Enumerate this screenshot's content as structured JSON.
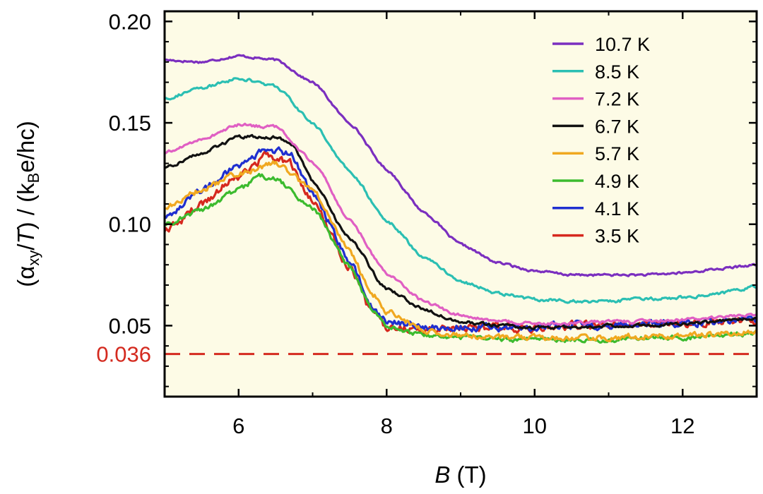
{
  "chart_data": {
    "type": "line",
    "xlabel_var": "B",
    "xlabel_unit": "(T)",
    "ylabel_pre": "(α",
    "ylabel_sub1": "xy",
    "ylabel_mid": "/",
    "ylabel_var": "T",
    "ylabel_post": ") / (k",
    "ylabel_sub2": "B",
    "ylabel_end": "e/hc)",
    "xlim": [
      5,
      13
    ],
    "ylim": [
      0.015,
      0.205
    ],
    "xticks": [
      "6",
      "8",
      "10",
      "12"
    ],
    "xtick_values": [
      6,
      8,
      10,
      12
    ],
    "yticks": [
      "0.05",
      "0.10",
      "0.15",
      "0.20"
    ],
    "ytick_values": [
      0.05,
      0.1,
      0.15,
      0.2
    ],
    "reference_line": {
      "value": 0.036,
      "label": "0.036",
      "color": "#d42a1f",
      "style": "dashed"
    },
    "background_color": "#fdfbe6",
    "legend_position": "top-right",
    "series": [
      {
        "name": "10.7 K",
        "color": "#7b2fbf",
        "noise": 0.0006,
        "x": [
          5.0,
          5.5,
          6.0,
          6.5,
          7.0,
          7.5,
          8.0,
          8.5,
          9.0,
          9.5,
          10.0,
          10.5,
          11.0,
          11.5,
          12.0,
          12.5,
          13.0
        ],
        "y": [
          0.181,
          0.18,
          0.183,
          0.181,
          0.17,
          0.15,
          0.127,
          0.106,
          0.09,
          0.081,
          0.077,
          0.075,
          0.075,
          0.075,
          0.076,
          0.078,
          0.08
        ]
      },
      {
        "name": "8.5 K",
        "color": "#2bbfb3",
        "noise": 0.0008,
        "x": [
          5.0,
          5.5,
          6.0,
          6.5,
          7.0,
          7.5,
          8.0,
          8.5,
          9.0,
          9.5,
          10.0,
          10.5,
          11.0,
          11.5,
          12.0,
          12.5,
          13.0
        ],
        "y": [
          0.162,
          0.167,
          0.172,
          0.168,
          0.15,
          0.126,
          0.102,
          0.084,
          0.072,
          0.066,
          0.063,
          0.062,
          0.062,
          0.063,
          0.064,
          0.066,
          0.069
        ]
      },
      {
        "name": "7.2 K",
        "color": "#e05fc3",
        "noise": 0.0008,
        "x": [
          5.0,
          5.5,
          6.0,
          6.5,
          7.0,
          7.5,
          8.0,
          8.5,
          9.0,
          9.5,
          10.0,
          10.5,
          11.0,
          11.5,
          12.0,
          12.5,
          13.0
        ],
        "y": [
          0.135,
          0.142,
          0.149,
          0.148,
          0.131,
          0.102,
          0.076,
          0.062,
          0.055,
          0.052,
          0.051,
          0.051,
          0.052,
          0.052,
          0.053,
          0.054,
          0.056
        ]
      },
      {
        "name": "6.7 K",
        "color": "#111111",
        "noise": 0.0008,
        "x": [
          5.0,
          5.5,
          6.0,
          6.5,
          6.75,
          7.0,
          7.5,
          8.0,
          8.5,
          9.0,
          9.5,
          10.0,
          10.5,
          11.0,
          11.5,
          12.0,
          12.5,
          13.0
        ],
        "y": [
          0.128,
          0.135,
          0.143,
          0.143,
          0.138,
          0.121,
          0.093,
          0.068,
          0.058,
          0.052,
          0.05,
          0.049,
          0.049,
          0.05,
          0.05,
          0.051,
          0.052,
          0.054
        ]
      },
      {
        "name": "5.7 K",
        "color": "#f0a820",
        "noise": 0.0015,
        "x": [
          5.0,
          5.5,
          6.0,
          6.5,
          7.0,
          7.5,
          7.8,
          8.0,
          8.5,
          9.0,
          9.5,
          10.0,
          10.5,
          11.0,
          11.5,
          12.0,
          12.5,
          13.0
        ],
        "y": [
          0.108,
          0.117,
          0.125,
          0.13,
          0.117,
          0.087,
          0.066,
          0.057,
          0.048,
          0.045,
          0.044,
          0.044,
          0.044,
          0.044,
          0.045,
          0.045,
          0.046,
          0.047
        ]
      },
      {
        "name": "4.9 K",
        "color": "#3cbb2e",
        "noise": 0.0012,
        "x": [
          5.0,
          5.5,
          6.0,
          6.3,
          6.5,
          7.0,
          7.5,
          7.8,
          8.0,
          8.5,
          9.0,
          9.5,
          10.0,
          10.5,
          11.0,
          11.5,
          12.0,
          12.5,
          13.0
        ],
        "y": [
          0.1,
          0.107,
          0.117,
          0.124,
          0.122,
          0.108,
          0.079,
          0.058,
          0.05,
          0.045,
          0.044,
          0.043,
          0.043,
          0.043,
          0.043,
          0.044,
          0.044,
          0.045,
          0.046
        ]
      },
      {
        "name": "4.1 K",
        "color": "#1f2fd0",
        "noise": 0.0018,
        "x": [
          5.0,
          5.5,
          6.0,
          6.4,
          6.7,
          7.0,
          7.5,
          7.8,
          8.0,
          8.5,
          9.0,
          9.5,
          10.0,
          10.5,
          11.0,
          11.5,
          12.0,
          12.5,
          13.0
        ],
        "y": [
          0.104,
          0.117,
          0.129,
          0.137,
          0.135,
          0.115,
          0.082,
          0.059,
          0.052,
          0.049,
          0.049,
          0.049,
          0.049,
          0.05,
          0.05,
          0.051,
          0.051,
          0.052,
          0.053
        ]
      },
      {
        "name": "3.5 K",
        "color": "#d6281e",
        "noise": 0.002,
        "x": [
          5.0,
          5.5,
          6.0,
          6.4,
          6.7,
          7.0,
          7.5,
          7.8,
          8.0,
          8.5,
          9.0,
          9.5,
          10.0,
          10.5,
          11.0,
          11.5,
          12.0,
          12.5,
          13.0
        ],
        "y": [
          0.096,
          0.11,
          0.124,
          0.134,
          0.13,
          0.111,
          0.079,
          0.057,
          0.049,
          0.048,
          0.049,
          0.049,
          0.049,
          0.05,
          0.05,
          0.051,
          0.051,
          0.052,
          0.052
        ]
      }
    ]
  }
}
